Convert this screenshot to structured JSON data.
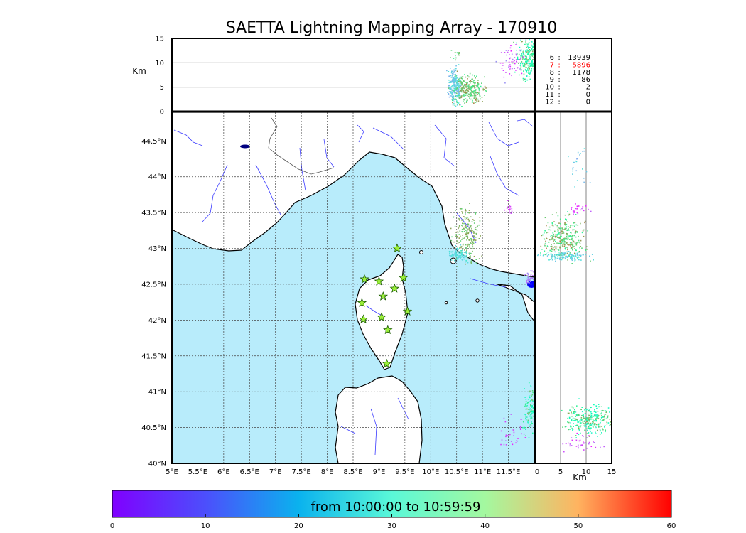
{
  "title": "SAETTA Lightning Mapping Array - 170910",
  "colorbar_label": "from 10:00:00 to 10:59:59",
  "station_counts": [
    {
      "label": "6",
      "value": "13939",
      "highlight": false
    },
    {
      "label": "7",
      "value": "5896",
      "highlight": true
    },
    {
      "label": "8",
      "value": "1178",
      "highlight": false
    },
    {
      "label": "9",
      "value": "86",
      "highlight": false
    },
    {
      "label": "10",
      "value": "2",
      "highlight": false
    },
    {
      "label": "11",
      "value": "0",
      "highlight": false
    },
    {
      "label": "12",
      "value": "0",
      "highlight": false
    }
  ],
  "colors": {
    "sea": "#b8ecfb",
    "land": "#ffffff",
    "coast": "#000000",
    "rivers": "#3a3aff",
    "station_fill": "#9cf03a",
    "highlight": "#ff0000"
  },
  "chart_data": [
    {
      "type": "scatter",
      "name": "plan-view-map",
      "xlim": [
        5.0,
        12.0
      ],
      "ylim": [
        40.0,
        44.9
      ],
      "x_ticks": [
        "5°E",
        "5.5°E",
        "6°E",
        "6.5°E",
        "7°E",
        "7.5°E",
        "8°E",
        "8.5°E",
        "9°E",
        "9.5°E",
        "10°E",
        "10.5°E",
        "11°E",
        "11.5°E"
      ],
      "x_tick_values": [
        5,
        5.5,
        6,
        6.5,
        7,
        7.5,
        8,
        8.5,
        9,
        9.5,
        10,
        10.5,
        11,
        11.5
      ],
      "y_ticks": [
        "40°N",
        "40.5°N",
        "41°N",
        "41.5°N",
        "42°N",
        "42.5°N",
        "43°N",
        "43.5°N",
        "44°N",
        "44.5°N"
      ],
      "y_tick_values": [
        40,
        40.5,
        41,
        41.5,
        42,
        42.5,
        43,
        43.5,
        44,
        44.5
      ],
      "grid": true,
      "stations": [
        {
          "lon": 9.35,
          "lat": 43.0
        },
        {
          "lon": 8.72,
          "lat": 42.57
        },
        {
          "lon": 9.0,
          "lat": 42.54
        },
        {
          "lon": 9.47,
          "lat": 42.59
        },
        {
          "lon": 9.3,
          "lat": 42.44
        },
        {
          "lon": 9.08,
          "lat": 42.33
        },
        {
          "lon": 8.67,
          "lat": 42.24
        },
        {
          "lon": 9.55,
          "lat": 42.12
        },
        {
          "lon": 8.7,
          "lat": 42.01
        },
        {
          "lon": 9.05,
          "lat": 42.04
        },
        {
          "lon": 9.17,
          "lat": 41.86
        },
        {
          "lon": 9.15,
          "lat": 41.39
        }
      ],
      "clusters": [
        {
          "lon": 10.7,
          "lat": 43.2,
          "spread_lon": 0.12,
          "spread_lat": 0.18,
          "n": 220,
          "t_min": 40,
          "t_max": 48
        },
        {
          "lon": 10.52,
          "lat": 42.93,
          "spread_lon": 0.09,
          "spread_lat": 0.05,
          "n": 90,
          "t_min": 18,
          "t_max": 22
        },
        {
          "lon": 11.95,
          "lat": 40.72,
          "spread_lon": 0.1,
          "spread_lat": 0.18,
          "n": 180,
          "t_min": 22,
          "t_max": 46
        },
        {
          "lon": 11.55,
          "lat": 40.4,
          "spread_lon": 0.12,
          "spread_lat": 0.12,
          "n": 30,
          "t_min": 2,
          "t_max": 10
        },
        {
          "lon": 11.5,
          "lat": 43.55,
          "spread_lon": 0.05,
          "spread_lat": 0.05,
          "n": 15,
          "t_min": 2,
          "t_max": 8
        },
        {
          "lon": 11.9,
          "lat": 42.6,
          "spread_lon": 0.04,
          "spread_lat": 0.04,
          "n": 40,
          "t_min": 8,
          "t_max": 12
        }
      ]
    },
    {
      "type": "scatter",
      "name": "lon-altitude-panel",
      "xlim": [
        5.0,
        12.0
      ],
      "ylim": [
        0,
        15
      ],
      "ylabel": "Km",
      "y_ticks": [
        "0",
        "5",
        "10",
        "15"
      ],
      "y_tick_values": [
        0,
        5,
        10,
        15
      ],
      "hgrid": [
        5,
        10
      ],
      "clusters": [
        {
          "lon": 10.45,
          "alt": 5.5,
          "spread_lon": 0.06,
          "spread_alt": 1.6,
          "n": 240,
          "t_min": 14,
          "t_max": 22
        },
        {
          "lon": 10.72,
          "alt": 4.6,
          "spread_lon": 0.14,
          "spread_alt": 1.4,
          "n": 280,
          "t_min": 36,
          "t_max": 50
        },
        {
          "lon": 11.9,
          "alt": 11.0,
          "spread_lon": 0.12,
          "spread_alt": 2.0,
          "n": 300,
          "t_min": 22,
          "t_max": 46
        },
        {
          "lon": 11.55,
          "alt": 10.5,
          "spread_lon": 0.12,
          "spread_alt": 2.0,
          "n": 60,
          "t_min": 2,
          "t_max": 12
        },
        {
          "lon": 10.48,
          "alt": 11.8,
          "spread_lon": 0.04,
          "spread_alt": 0.6,
          "n": 15,
          "t_min": 36,
          "t_max": 50
        }
      ]
    },
    {
      "type": "scatter",
      "name": "altitude-lat-panel",
      "xlim": [
        0,
        15
      ],
      "ylim": [
        40.0,
        44.9
      ],
      "xlabel": "Km",
      "x_ticks": [
        "0",
        "5",
        "10",
        "15"
      ],
      "x_tick_values": [
        0,
        5,
        10,
        15
      ],
      "vgrid": [
        5,
        10
      ],
      "clusters": [
        {
          "alt": 5.5,
          "lat": 43.15,
          "spread_alt": 2.0,
          "spread_lat": 0.14,
          "n": 320,
          "t_min": 34,
          "t_max": 50
        },
        {
          "alt": 5.5,
          "lat": 42.9,
          "spread_alt": 2.2,
          "spread_lat": 0.03,
          "n": 120,
          "t_min": 16,
          "t_max": 22
        },
        {
          "alt": 10.5,
          "lat": 40.62,
          "spread_alt": 2.2,
          "spread_lat": 0.1,
          "n": 320,
          "t_min": 22,
          "t_max": 48
        },
        {
          "alt": 9.0,
          "lat": 40.3,
          "spread_alt": 2.0,
          "spread_lat": 0.06,
          "n": 40,
          "t_min": 2,
          "t_max": 10
        },
        {
          "alt": 8.5,
          "lat": 43.55,
          "spread_alt": 1.0,
          "spread_lat": 0.05,
          "n": 20,
          "t_min": 2,
          "t_max": 8
        },
        {
          "alt": 8.5,
          "lat": 44.2,
          "spread_alt": 1.5,
          "spread_lat": 0.15,
          "n": 25,
          "t_min": 14,
          "t_max": 22
        }
      ]
    },
    {
      "type": "heatmap",
      "name": "colorbar",
      "range": [
        0,
        60
      ],
      "ticks": [
        "0",
        "10",
        "20",
        "30",
        "40",
        "50",
        "60"
      ],
      "tick_values": [
        0,
        10,
        20,
        30,
        40,
        50,
        60
      ]
    }
  ]
}
